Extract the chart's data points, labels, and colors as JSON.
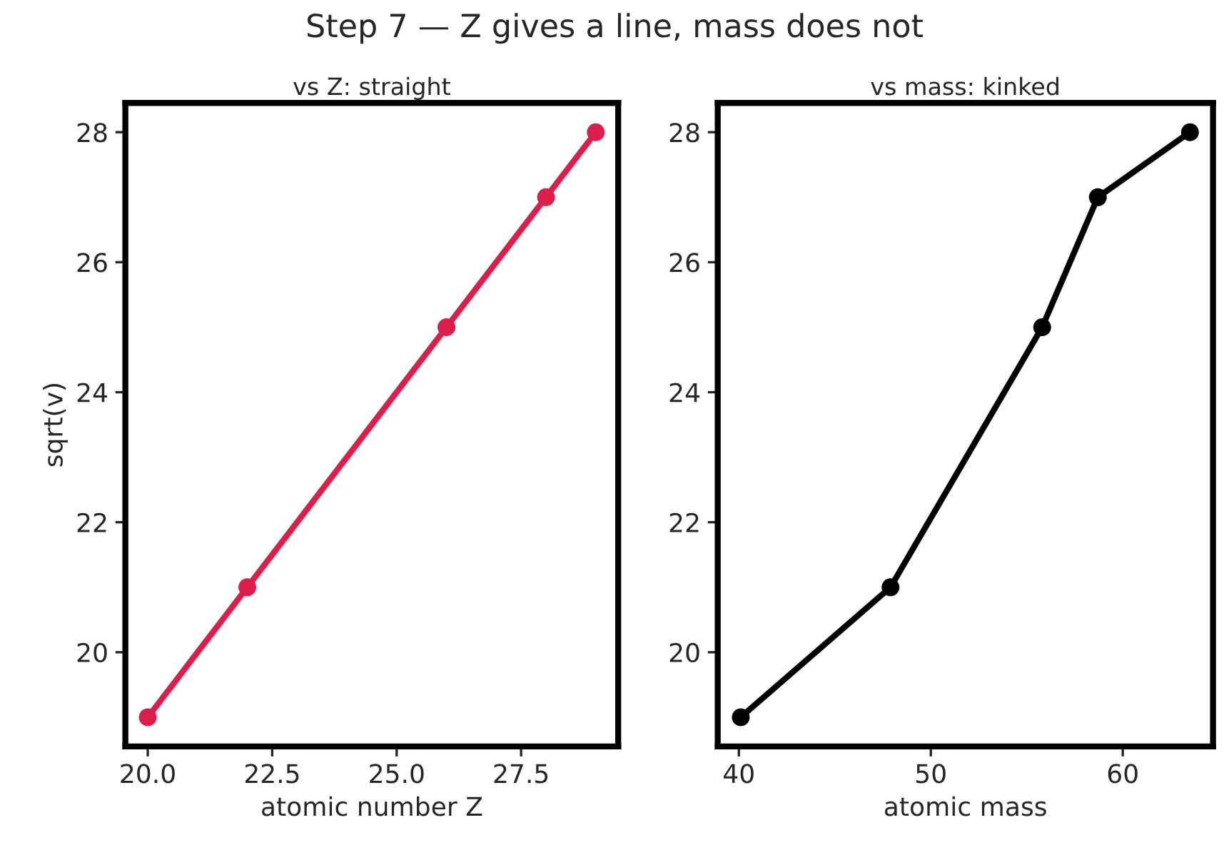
{
  "chart_data": [
    {
      "type": "line",
      "title": "Step 7 — Z gives a line, mass does not",
      "subtitle": "vs Z: straight",
      "xlabel": "atomic number Z",
      "ylabel": "sqrt(v)",
      "x": [
        20,
        22,
        26,
        28,
        29
      ],
      "series": [
        {
          "color": "#dc1e4b",
          "values": [
            19,
            21,
            25,
            27,
            28
          ]
        }
      ],
      "xlim": [
        19.55,
        29.45
      ],
      "ylim": [
        18.55,
        28.45
      ],
      "xticks": [
        {
          "value": 20,
          "label": "20.0"
        },
        {
          "value": 22.5,
          "label": "22.5"
        },
        {
          "value": 25,
          "label": "25.0"
        },
        {
          "value": 27.5,
          "label": "27.5"
        }
      ],
      "yticks": [
        20,
        22,
        24,
        26,
        28
      ],
      "marker": "circle",
      "line_style": "solid",
      "grid": false,
      "legend": false
    },
    {
      "type": "line",
      "subtitle": "vs mass: kinked",
      "xlabel": "atomic mass",
      "x": [
        40.1,
        47.9,
        55.8,
        58.7,
        63.5
      ],
      "series": [
        {
          "color": "#000000",
          "values": [
            19,
            21,
            25,
            27,
            28
          ]
        }
      ],
      "xlim": [
        38.9,
        64.7
      ],
      "ylim": [
        18.55,
        28.45
      ],
      "xticks": [
        40,
        50,
        60
      ],
      "yticks": [
        20,
        22,
        24,
        26,
        28
      ],
      "marker": "circle",
      "line_style": "solid",
      "grid": false,
      "legend": false
    }
  ]
}
